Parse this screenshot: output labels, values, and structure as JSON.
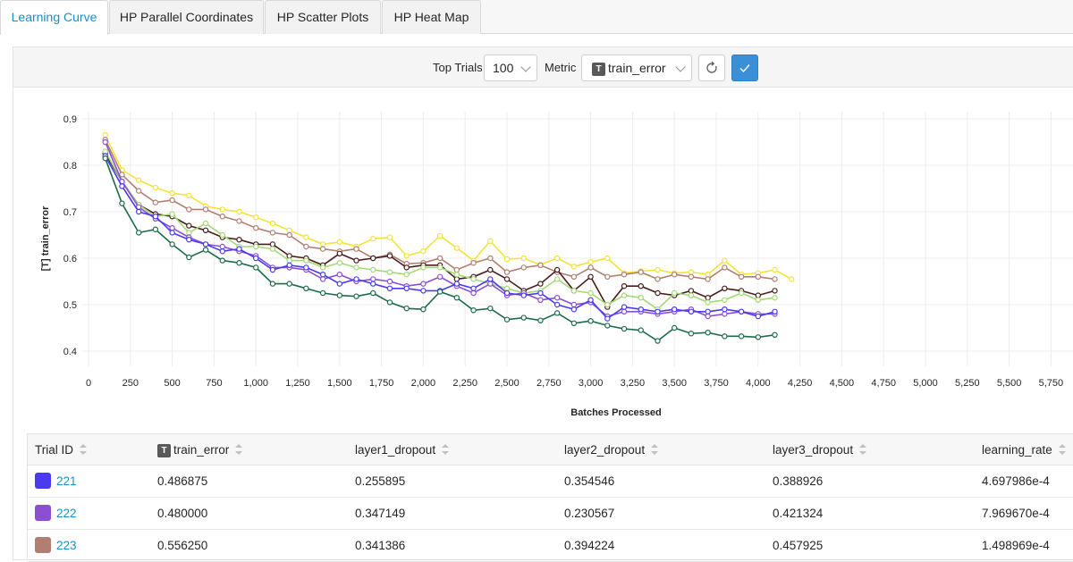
{
  "tabs": [
    {
      "label": "Learning Curve",
      "active": true
    },
    {
      "label": "HP Parallel Coordinates"
    },
    {
      "label": "HP Scatter Plots"
    },
    {
      "label": "HP Heat Map"
    }
  ],
  "toolbar": {
    "top_trials_label": "Top Trials",
    "top_trials_value": "100",
    "metric_label": "Metric",
    "metric_badge": "T",
    "metric_value": "train_error"
  },
  "chart_data": {
    "type": "line",
    "xlabel": "Batches Processed",
    "ylabel": "[T] train_error",
    "xlim": [
      0,
      5900
    ],
    "ylim": [
      0.38,
      0.9
    ],
    "x_ticks": [
      "0",
      "250",
      "500",
      "750",
      "1,000",
      "1,250",
      "1,500",
      "1,750",
      "2,000",
      "2,250",
      "2,500",
      "2,750",
      "3,000",
      "3,250",
      "3,500",
      "3,750",
      "4,000",
      "4,250",
      "4,500",
      "4,750",
      "5,000",
      "5,250",
      "5,500",
      "5,750"
    ],
    "y_ticks": [
      "0.4",
      "0.5",
      "0.6",
      "0.7",
      "0.8",
      "0.9"
    ],
    "grid": true,
    "x": [
      100,
      200,
      300,
      400,
      500,
      600,
      700,
      800,
      900,
      1000,
      1100,
      1200,
      1300,
      1400,
      1500,
      1600,
      1700,
      1800,
      1900,
      2000,
      2100,
      2200,
      2300,
      2400,
      2500,
      2600,
      2700,
      2800,
      2900,
      3000,
      3100,
      3200,
      3300,
      3400,
      3500,
      3600,
      3700,
      3800,
      3900,
      4000,
      4100
    ],
    "series": [
      {
        "color": "#f2e33a",
        "values": [
          0.865,
          0.79,
          0.768,
          0.752,
          0.74,
          0.735,
          0.712,
          0.705,
          0.7,
          0.688,
          0.675,
          0.66,
          0.645,
          0.63,
          0.635,
          0.625,
          0.642,
          0.645,
          0.605,
          0.615,
          0.648,
          0.622,
          0.595,
          0.637,
          0.598,
          0.6,
          0.586,
          0.6,
          0.582,
          0.592,
          0.6,
          0.568,
          0.572,
          0.575,
          0.568,
          0.57,
          0.565,
          0.595,
          0.565,
          0.568,
          0.575
        ],
        "extra": [
          [
            4200,
            0.555
          ]
        ]
      },
      {
        "color": "#b07f72",
        "values": [
          0.855,
          0.78,
          0.745,
          0.72,
          0.725,
          0.705,
          0.705,
          0.69,
          0.68,
          0.665,
          0.655,
          0.65,
          0.625,
          0.62,
          0.615,
          0.62,
          0.6,
          0.608,
          0.588,
          0.59,
          0.6,
          0.575,
          0.59,
          0.6,
          0.57,
          0.58,
          0.585,
          0.57,
          0.56,
          0.58,
          0.56,
          0.565,
          0.57,
          0.555,
          0.565,
          0.56,
          0.555,
          0.58,
          0.56,
          0.56,
          0.555
        ]
      },
      {
        "color": "#4a1c1c",
        "values": [
          0.825,
          0.765,
          0.715,
          0.695,
          0.69,
          0.67,
          0.66,
          0.645,
          0.64,
          0.63,
          0.63,
          0.605,
          0.6,
          0.585,
          0.61,
          0.595,
          0.6,
          0.605,
          0.58,
          0.585,
          0.585,
          0.555,
          0.56,
          0.575,
          0.555,
          0.53,
          0.545,
          0.575,
          0.53,
          0.56,
          0.495,
          0.54,
          0.54,
          0.525,
          0.52,
          0.53,
          0.515,
          0.535,
          0.53,
          0.52,
          0.53
        ]
      },
      {
        "color": "#a3d977",
        "values": [
          0.83,
          0.765,
          0.715,
          0.69,
          0.695,
          0.655,
          0.675,
          0.65,
          0.625,
          0.625,
          0.62,
          0.595,
          0.595,
          0.58,
          0.59,
          0.58,
          0.575,
          0.57,
          0.565,
          0.58,
          0.58,
          0.565,
          0.555,
          0.545,
          0.535,
          0.525,
          0.53,
          0.555,
          0.53,
          0.525,
          0.5,
          0.52,
          0.515,
          0.49,
          0.525,
          0.52,
          0.505,
          0.51,
          0.525,
          0.51,
          0.515
        ]
      },
      {
        "color": "#8b4fd3",
        "values": [
          0.85,
          0.765,
          0.71,
          0.685,
          0.665,
          0.645,
          0.63,
          0.625,
          0.615,
          0.605,
          0.58,
          0.58,
          0.575,
          0.555,
          0.565,
          0.55,
          0.555,
          0.55,
          0.54,
          0.545,
          0.56,
          0.54,
          0.525,
          0.545,
          0.52,
          0.525,
          0.51,
          0.515,
          0.5,
          0.505,
          0.475,
          0.485,
          0.485,
          0.48,
          0.485,
          0.49,
          0.475,
          0.48,
          0.485,
          0.48,
          0.48
        ]
      },
      {
        "color": "#4b3bf0",
        "values": [
          0.82,
          0.755,
          0.7,
          0.69,
          0.655,
          0.64,
          0.63,
          0.615,
          0.62,
          0.6,
          0.575,
          0.585,
          0.58,
          0.565,
          0.545,
          0.555,
          0.545,
          0.535,
          0.535,
          0.53,
          0.53,
          0.545,
          0.535,
          0.555,
          0.525,
          0.52,
          0.525,
          0.5,
          0.49,
          0.51,
          0.47,
          0.495,
          0.49,
          0.485,
          0.49,
          0.485,
          0.485,
          0.49,
          0.485,
          0.475,
          0.485
        ]
      },
      {
        "color": "#1d6b4b",
        "values": [
          0.815,
          0.718,
          0.655,
          0.662,
          0.63,
          0.602,
          0.618,
          0.595,
          0.59,
          0.58,
          0.545,
          0.545,
          0.535,
          0.525,
          0.52,
          0.518,
          0.525,
          0.505,
          0.492,
          0.49,
          0.528,
          0.515,
          0.488,
          0.492,
          0.468,
          0.472,
          0.466,
          0.482,
          0.46,
          0.465,
          0.455,
          0.448,
          0.445,
          0.422,
          0.45,
          0.438,
          0.44,
          0.432,
          0.432,
          0.43,
          0.435
        ]
      }
    ]
  },
  "table": {
    "columns": [
      {
        "label": "Trial ID"
      },
      {
        "label": "train_error",
        "badge": "T"
      },
      {
        "label": "layer1_dropout"
      },
      {
        "label": "layer2_dropout"
      },
      {
        "label": "layer3_dropout"
      },
      {
        "label": "learning_rate"
      }
    ],
    "rows": [
      {
        "color": "#4b3bf0",
        "id": "221",
        "train_error": "0.486875",
        "layer1_dropout": "0.255895",
        "layer2_dropout": "0.354546",
        "layer3_dropout": "0.388926",
        "learning_rate": "4.697986e-4"
      },
      {
        "color": "#8b4fd3",
        "id": "222",
        "train_error": "0.480000",
        "layer1_dropout": "0.347149",
        "layer2_dropout": "0.230567",
        "layer3_dropout": "0.421324",
        "learning_rate": "7.969670e-4"
      },
      {
        "color": "#b07f72",
        "id": "223",
        "train_error": "0.556250",
        "layer1_dropout": "0.341386",
        "layer2_dropout": "0.394224",
        "layer3_dropout": "0.457925",
        "learning_rate": "1.498969e-4"
      }
    ]
  }
}
